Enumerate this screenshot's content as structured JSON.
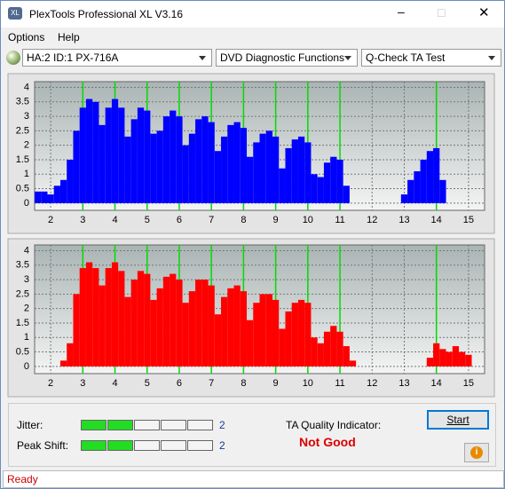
{
  "window": {
    "title": "PlexTools Professional XL V3.16",
    "menu": [
      "Options",
      "Help"
    ],
    "toolbar": [
      "HA:2 ID:1  PX-716A",
      "DVD Diagnostic Functions",
      "Q-Check TA Test"
    ]
  },
  "chart_data": [
    {
      "type": "bar",
      "color": "#0000ff",
      "grid": true,
      "xlim": [
        1.5,
        15.5
      ],
      "ylim": [
        -0.25,
        4.2
      ],
      "xticks": [
        2,
        3,
        4,
        5,
        6,
        7,
        8,
        9,
        10,
        11,
        12,
        13,
        14,
        15
      ],
      "yticks": [
        0,
        0.5,
        1,
        1.5,
        2,
        2.5,
        3,
        3.5,
        4
      ],
      "reference_lines": [
        3,
        4,
        5,
        6,
        7,
        8,
        9,
        10,
        11,
        14
      ],
      "reference_color": "#00dd00",
      "x": [
        1.6,
        1.8,
        2.0,
        2.2,
        2.4,
        2.6,
        2.8,
        3.0,
        3.2,
        3.4,
        3.6,
        3.8,
        4.0,
        4.2,
        4.4,
        4.6,
        4.8,
        5.0,
        5.2,
        5.4,
        5.6,
        5.8,
        6.0,
        6.2,
        6.4,
        6.6,
        6.8,
        7.0,
        7.2,
        7.4,
        7.6,
        7.8,
        8.0,
        8.2,
        8.4,
        8.6,
        8.8,
        9.0,
        9.2,
        9.4,
        9.6,
        9.8,
        10.0,
        10.2,
        10.4,
        10.6,
        10.8,
        11.0,
        11.2,
        11.4,
        11.6,
        11.8,
        12.0,
        12.2,
        12.4,
        12.6,
        12.8,
        13.0,
        13.2,
        13.4,
        13.6,
        13.8,
        14.0,
        14.2,
        14.4,
        14.6,
        14.8,
        15.0,
        15.2,
        15.4
      ],
      "values": [
        0.4,
        0.4,
        0.3,
        0.6,
        0.8,
        1.5,
        2.5,
        3.3,
        3.6,
        3.5,
        2.7,
        3.3,
        3.6,
        3.3,
        2.3,
        2.9,
        3.3,
        3.2,
        2.4,
        2.5,
        3.0,
        3.2,
        3.0,
        2.0,
        2.4,
        2.9,
        3.0,
        2.8,
        1.8,
        2.3,
        2.7,
        2.8,
        2.6,
        1.6,
        2.1,
        2.4,
        2.5,
        2.3,
        1.2,
        1.9,
        2.2,
        2.3,
        2.1,
        1.0,
        0.9,
        1.4,
        1.6,
        1.5,
        0.6,
        0,
        0,
        0,
        0,
        0,
        0,
        0,
        0,
        0.3,
        0.8,
        1.1,
        1.5,
        1.8,
        1.9,
        0.8,
        0,
        0,
        0,
        0,
        0,
        0
      ]
    },
    {
      "type": "bar",
      "color": "#ff0000",
      "grid": true,
      "xlim": [
        1.5,
        15.5
      ],
      "ylim": [
        -0.25,
        4.2
      ],
      "xticks": [
        2,
        3,
        4,
        5,
        6,
        7,
        8,
        9,
        10,
        11,
        12,
        13,
        14,
        15
      ],
      "yticks": [
        0,
        0.5,
        1,
        1.5,
        2,
        2.5,
        3,
        3.5,
        4
      ],
      "reference_lines": [
        3,
        4,
        5,
        6,
        7,
        8,
        9,
        10,
        11,
        14
      ],
      "reference_color": "#00dd00",
      "x": [
        1.6,
        1.8,
        2.0,
        2.2,
        2.4,
        2.6,
        2.8,
        3.0,
        3.2,
        3.4,
        3.6,
        3.8,
        4.0,
        4.2,
        4.4,
        4.6,
        4.8,
        5.0,
        5.2,
        5.4,
        5.6,
        5.8,
        6.0,
        6.2,
        6.4,
        6.6,
        6.8,
        7.0,
        7.2,
        7.4,
        7.6,
        7.8,
        8.0,
        8.2,
        8.4,
        8.6,
        8.8,
        9.0,
        9.2,
        9.4,
        9.6,
        9.8,
        10.0,
        10.2,
        10.4,
        10.6,
        10.8,
        11.0,
        11.2,
        11.4,
        11.6,
        11.8,
        12.0,
        12.2,
        12.4,
        12.6,
        12.8,
        13.0,
        13.2,
        13.4,
        13.6,
        13.8,
        14.0,
        14.2,
        14.4,
        14.6,
        14.8,
        15.0,
        15.2,
        15.4
      ],
      "values": [
        0,
        0,
        0,
        0,
        0.2,
        0.8,
        2.5,
        3.4,
        3.6,
        3.4,
        2.8,
        3.4,
        3.6,
        3.3,
        2.4,
        3.0,
        3.3,
        3.2,
        2.3,
        2.7,
        3.1,
        3.2,
        3.0,
        2.2,
        2.6,
        3.0,
        3.0,
        2.8,
        1.8,
        2.4,
        2.7,
        2.8,
        2.6,
        1.6,
        2.2,
        2.5,
        2.5,
        2.3,
        1.3,
        1.9,
        2.2,
        2.3,
        2.2,
        1.0,
        0.8,
        1.2,
        1.4,
        1.2,
        0.7,
        0.2,
        0,
        0,
        0,
        0,
        0,
        0,
        0,
        0,
        0,
        0,
        0,
        0.3,
        0.8,
        0.6,
        0.5,
        0.7,
        0.5,
        0.4,
        0,
        0
      ]
    }
  ],
  "indicators": [
    {
      "label": "Jitter:",
      "value": 2,
      "color": "#22dd22"
    },
    {
      "label": "Peak Shift:",
      "value": 2,
      "color": "#22dd22"
    }
  ],
  "quality": {
    "label": "TA Quality Indicator:",
    "value": "Not Good",
    "color": "#dd0000"
  },
  "button": "Start",
  "status": "Ready"
}
